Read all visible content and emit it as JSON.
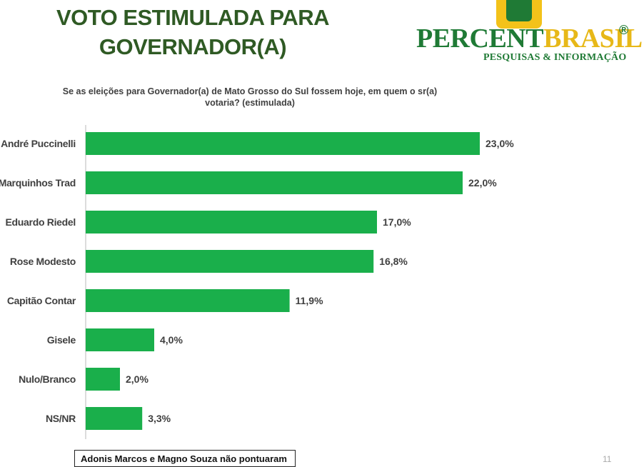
{
  "title": {
    "line1": "VOTO ESTIMULADA PARA",
    "line2": "GOVERNADOR(A)"
  },
  "logo": {
    "word1": "PERCENT",
    "word2": "BRASIL",
    "registered": "®",
    "tagline": "PESQUISAS & INFORMAÇÃO"
  },
  "question": {
    "line1": "Se as eleições para Governador(a) de Mato Grosso do Sul fossem hoje, em quem o sr(a)",
    "line2": "votaria? (estimulada)"
  },
  "footnote": "Adonis Marcos e Magno Souza não pontuaram",
  "page_number": "11",
  "colors": {
    "bar": "#1aaf4b",
    "axis": "#d0d0d0",
    "label": "#404040"
  },
  "chart_data": {
    "type": "bar",
    "orientation": "horizontal",
    "categories": [
      "André Puccinelli",
      "Marquinhos Trad",
      "Eduardo Riedel",
      "Rose Modesto",
      "Capitão Contar",
      "Gisele",
      "Nulo/Branco",
      "NS/NR"
    ],
    "values": [
      23.0,
      22.0,
      17.0,
      16.8,
      11.9,
      4.0,
      2.0,
      3.3
    ],
    "value_labels": [
      "23,0%",
      "22,0%",
      "17,0%",
      "16,8%",
      "11,9%",
      "4,0%",
      "2,0%",
      "3,3%"
    ],
    "xlim": [
      0,
      24.5
    ],
    "unit": "%",
    "grid": false,
    "legend": "none"
  }
}
